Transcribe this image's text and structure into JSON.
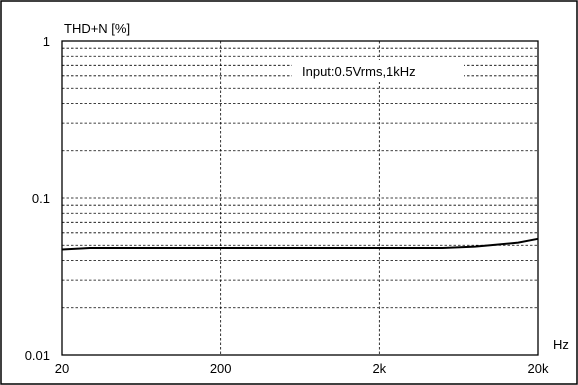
{
  "chart_data": {
    "type": "line",
    "ylabel": "THD+N [%]",
    "xlabel": "Hz",
    "annotation": "Input:0.5Vrms,1kHz",
    "xscale": "log",
    "yscale": "log",
    "xlim": [
      20,
      20000
    ],
    "ylim": [
      0.01,
      1
    ],
    "grid": true,
    "x_ticks": [
      {
        "value": 20,
        "label": "20"
      },
      {
        "value": 200,
        "label": "200"
      },
      {
        "value": 2000,
        "label": "2k"
      },
      {
        "value": 20000,
        "label": "20k"
      }
    ],
    "y_ticks": [
      {
        "value": 1,
        "label": "1"
      },
      {
        "value": 0.1,
        "label": "0.1"
      },
      {
        "value": 0.01,
        "label": "0.01"
      }
    ],
    "series": [
      {
        "x": [
          20,
          30,
          50,
          100,
          200,
          500,
          1000,
          2000,
          5000,
          8000,
          10000,
          15000,
          20000
        ],
        "y": [
          0.047,
          0.048,
          0.048,
          0.048,
          0.048,
          0.048,
          0.048,
          0.048,
          0.048,
          0.049,
          0.05,
          0.052,
          0.055
        ]
      }
    ]
  }
}
